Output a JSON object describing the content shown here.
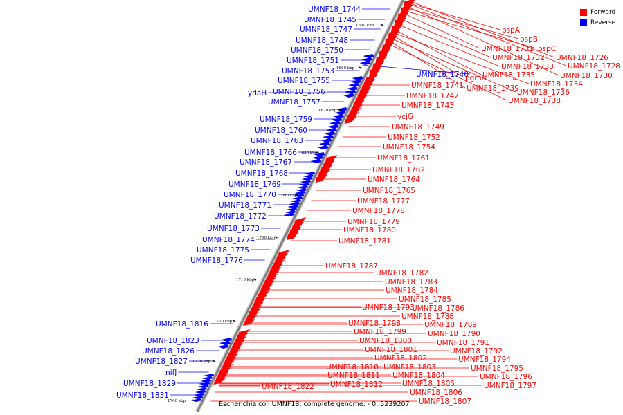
{
  "caption": "Escherichia coli UMNF18, complete genome. - 0..5239207",
  "legend": [
    {
      "label": "Forward",
      "color": "#ff0000"
    },
    {
      "label": "Reverse",
      "color": "#0000ff"
    }
  ],
  "colors": {
    "forward": "#ff0000",
    "reverse": "#0000ff",
    "axis": "#808080"
  },
  "ticks": [
    "1650 kbp",
    "1660 kbp",
    "1670 kbp",
    "1680 kbp",
    "1690 kbp",
    "1700 kbp",
    "1710 kbp",
    "1720 kbp",
    "1730 kbp",
    "1740 kbp"
  ],
  "labels": [
    {
      "text": "UMNF18_1744",
      "strand": "reverse"
    },
    {
      "text": "UMNF18_1745",
      "strand": "reverse"
    },
    {
      "text": "UMNF18_1747",
      "strand": "reverse"
    },
    {
      "text": "UMNF18_1748",
      "strand": "reverse"
    },
    {
      "text": "UMNF18_1750",
      "strand": "reverse"
    },
    {
      "text": "UMNF18_1751",
      "strand": "reverse"
    },
    {
      "text": "UMNF18_1753",
      "strand": "reverse"
    },
    {
      "text": "UMNF18_1755",
      "strand": "reverse"
    },
    {
      "text": "ydaH",
      "strand": "reverse"
    },
    {
      "text": "UMNF18_1756",
      "strand": "reverse"
    },
    {
      "text": "UMNF18_1757",
      "strand": "reverse"
    },
    {
      "text": "UMNF18_1759",
      "strand": "reverse"
    },
    {
      "text": "UMNF18_1760",
      "strand": "reverse"
    },
    {
      "text": "UMNF18_1763",
      "strand": "reverse"
    },
    {
      "text": "UMNF18_1766",
      "strand": "reverse"
    },
    {
      "text": "UMNF18_1767",
      "strand": "reverse"
    },
    {
      "text": "UMNF18_1768",
      "strand": "reverse"
    },
    {
      "text": "UMNF18_1769",
      "strand": "reverse"
    },
    {
      "text": "UMNF18_1770",
      "strand": "reverse"
    },
    {
      "text": "UMNF18_1771",
      "strand": "reverse"
    },
    {
      "text": "UMNF18_1772",
      "strand": "reverse"
    },
    {
      "text": "UMNF18_1773",
      "strand": "reverse"
    },
    {
      "text": "UMNF18_1774",
      "strand": "reverse"
    },
    {
      "text": "UMNF18_1775",
      "strand": "reverse"
    },
    {
      "text": "UMNF18_1776",
      "strand": "reverse"
    },
    {
      "text": "UMNF18_1740",
      "strand": "reverse"
    },
    {
      "text": "UMNF18_1816",
      "strand": "reverse"
    },
    {
      "text": "UMNF18_1823",
      "strand": "reverse"
    },
    {
      "text": "UMNF18_1826",
      "strand": "reverse"
    },
    {
      "text": "UMNF18_1827",
      "strand": "reverse"
    },
    {
      "text": "nifJ",
      "strand": "reverse"
    },
    {
      "text": "UMNF18_1829",
      "strand": "reverse"
    },
    {
      "text": "UMNF18_1831",
      "strand": "reverse"
    },
    {
      "text": "pspA",
      "strand": "forward"
    },
    {
      "text": "pspB",
      "strand": "forward"
    },
    {
      "text": "UMNF18_1731",
      "strand": "forward"
    },
    {
      "text": "pspC",
      "strand": "forward"
    },
    {
      "text": "UMNF18_1726",
      "strand": "forward"
    },
    {
      "text": "UMNF18_1732",
      "strand": "forward"
    },
    {
      "text": "UMNF18_1728",
      "strand": "forward"
    },
    {
      "text": "UMNF18_1733",
      "strand": "forward"
    },
    {
      "text": "UMNF18_1735",
      "strand": "forward"
    },
    {
      "text": "UMNF18_1730",
      "strand": "forward"
    },
    {
      "text": "pgmB",
      "strand": "forward"
    },
    {
      "text": "UMNF18_1734",
      "strand": "forward"
    },
    {
      "text": "UMNF18_1741",
      "strand": "forward"
    },
    {
      "text": "UMNF18_1739",
      "strand": "forward"
    },
    {
      "text": "UMNF18_1736",
      "strand": "forward"
    },
    {
      "text": "UMNF18_1742",
      "strand": "forward"
    },
    {
      "text": "UMNF18_1738",
      "strand": "forward"
    },
    {
      "text": "UMNF18_1743",
      "strand": "forward"
    },
    {
      "text": "ycjG",
      "strand": "forward"
    },
    {
      "text": "UMNF18_1749",
      "strand": "forward"
    },
    {
      "text": "UMNF18_1752",
      "strand": "forward"
    },
    {
      "text": "UMNF18_1754",
      "strand": "forward"
    },
    {
      "text": "UMNF18_1761",
      "strand": "forward"
    },
    {
      "text": "UMNF18_1762",
      "strand": "forward"
    },
    {
      "text": "UMNF18_1764",
      "strand": "forward"
    },
    {
      "text": "UMNF18_1765",
      "strand": "forward"
    },
    {
      "text": "UMNF18_1777",
      "strand": "forward"
    },
    {
      "text": "UMNF18_1778",
      "strand": "forward"
    },
    {
      "text": "UMNF18_1779",
      "strand": "forward"
    },
    {
      "text": "UMNF18_1780",
      "strand": "forward"
    },
    {
      "text": "UMNF18_1781",
      "strand": "forward"
    },
    {
      "text": "UMNF18_1787",
      "strand": "forward"
    },
    {
      "text": "UMNF18_1782",
      "strand": "forward"
    },
    {
      "text": "UMNF18_1783",
      "strand": "forward"
    },
    {
      "text": "UMNF18_1784",
      "strand": "forward"
    },
    {
      "text": "UMNF18_1785",
      "strand": "forward"
    },
    {
      "text": "UMNF18_1793",
      "strand": "forward"
    },
    {
      "text": "UMNF18_1786",
      "strand": "forward"
    },
    {
      "text": "UMNF18_1788",
      "strand": "forward"
    },
    {
      "text": "UMNF18_1798",
      "strand": "forward"
    },
    {
      "text": "UMNF18_1789",
      "strand": "forward"
    },
    {
      "text": "UMNF18_1799",
      "strand": "forward"
    },
    {
      "text": "UMNF18_1790",
      "strand": "forward"
    },
    {
      "text": "UMNF18_1800",
      "strand": "forward"
    },
    {
      "text": "UMNF18_1791",
      "strand": "forward"
    },
    {
      "text": "UMNF18_1801",
      "strand": "forward"
    },
    {
      "text": "UMNF18_1792",
      "strand": "forward"
    },
    {
      "text": "UMNF18_1802",
      "strand": "forward"
    },
    {
      "text": "UMNF18_1794",
      "strand": "forward"
    },
    {
      "text": "UMNF18_1803",
      "strand": "forward"
    },
    {
      "text": "UMNF18_1810",
      "strand": "forward"
    },
    {
      "text": "UMNF18_1795",
      "strand": "forward"
    },
    {
      "text": "UMNF18_1804",
      "strand": "forward"
    },
    {
      "text": "UMNF18_1811",
      "strand": "forward"
    },
    {
      "text": "UMNF18_1796",
      "strand": "forward"
    },
    {
      "text": "UMNF18_1805",
      "strand": "forward"
    },
    {
      "text": "UMNF18_1812",
      "strand": "forward"
    },
    {
      "text": "UMNF18_1797",
      "strand": "forward"
    },
    {
      "text": "UMNF18_1806",
      "strand": "forward"
    },
    {
      "text": "UMNF18_1807",
      "strand": "forward"
    },
    {
      "text": "UMNF18_1822",
      "strand": "forward"
    }
  ]
}
